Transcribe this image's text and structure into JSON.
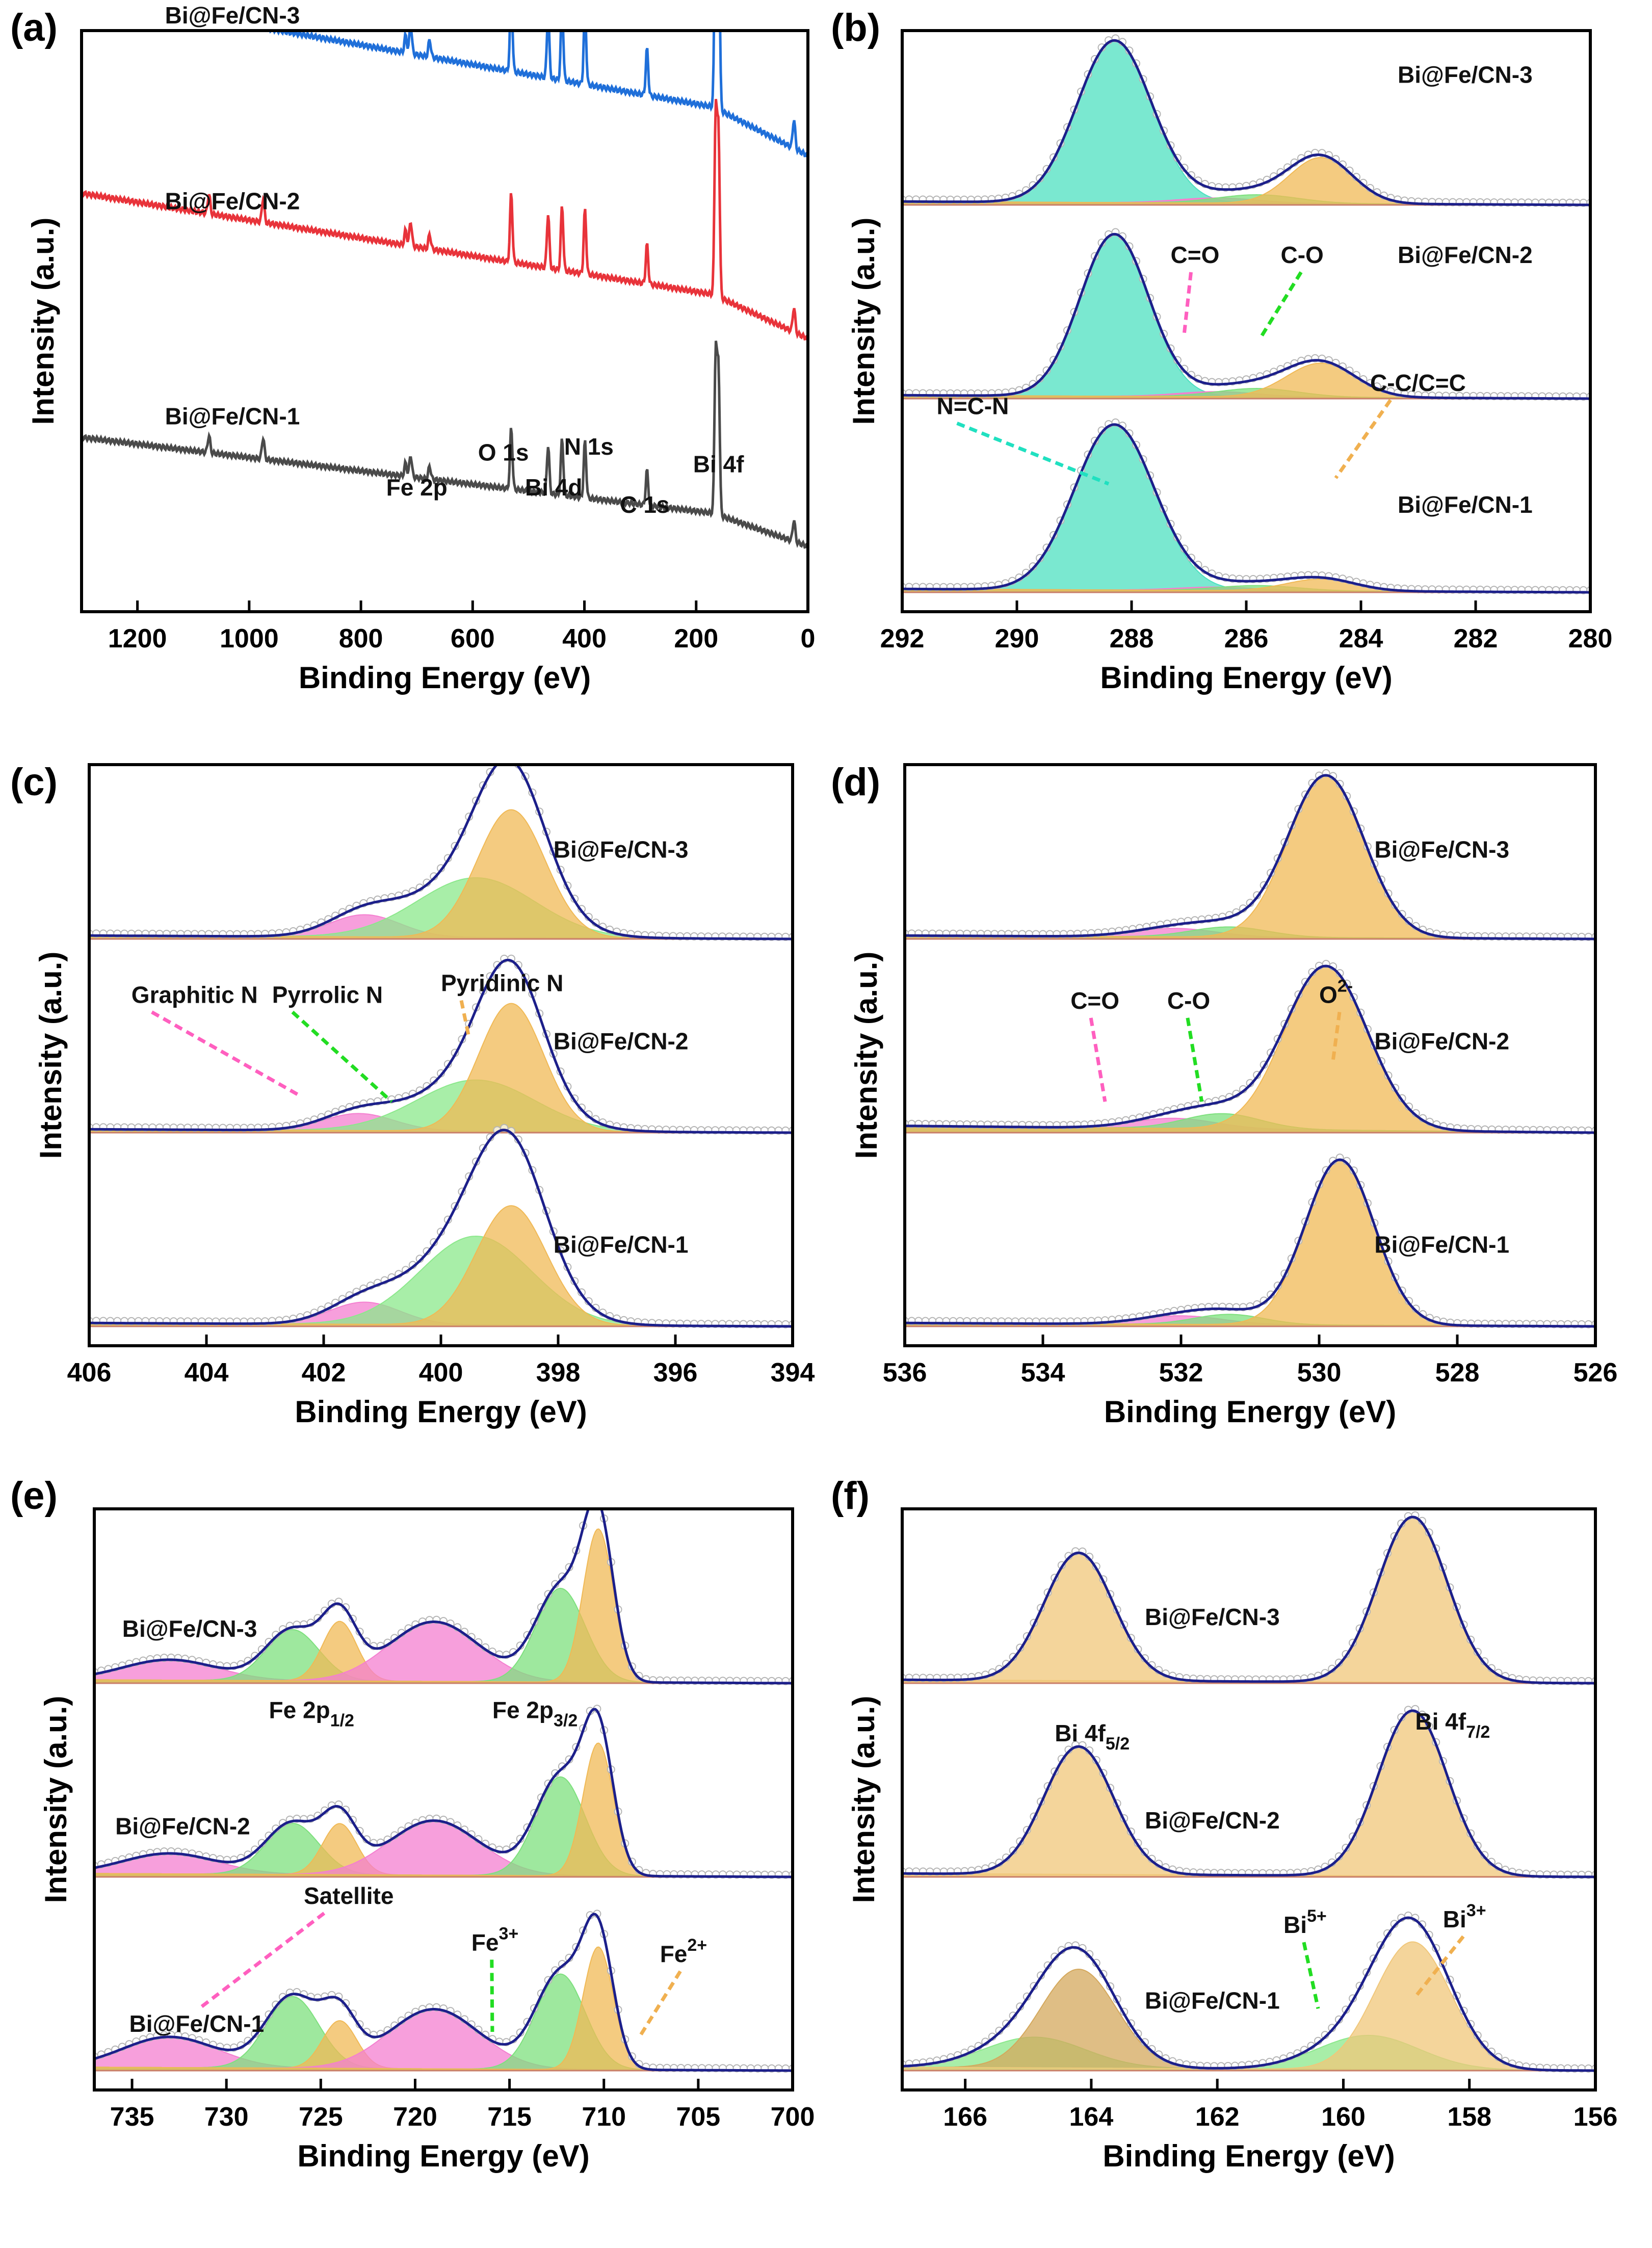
{
  "figure": {
    "panels": [
      {
        "id": "a",
        "label": "(a)",
        "type": "survey",
        "xlabel": "Binding Energy (eV)",
        "ylabel": "Intensity (a.u.)",
        "xlim": [
          1300,
          0
        ],
        "xticks": [
          1200,
          1000,
          800,
          600,
          400,
          200,
          0
        ],
        "xticklabels": [
          "1200",
          "1000",
          "800",
          "600",
          "400",
          "200",
          "0"
        ],
        "samples": [
          {
            "name": "Bi@Fe/CN-3",
            "color": "#1f6fd9",
            "base": 0.84,
            "slope": 0.22,
            "scale": 1.0
          },
          {
            "name": "Bi@Fe/CN-2",
            "color": "#e8333a",
            "base": 0.52,
            "slope": 0.2,
            "scale": 0.85
          },
          {
            "name": "Bi@Fe/CN-1",
            "color": "#4a4a4a",
            "base": 0.15,
            "slope": 0.15,
            "scale": 0.75
          }
        ],
        "peaks": [
          {
            "label": "Fe 2p",
            "be": 711
          },
          {
            "label": "O 1s",
            "be": 531
          },
          {
            "label": "Bi 4d",
            "be": 465
          },
          {
            "label": "N 1s",
            "be": 399
          },
          {
            "label": "C 1s",
            "be": 288
          },
          {
            "label": "Bi 4f",
            "be": 160
          }
        ]
      },
      {
        "id": "b",
        "label": "(b)",
        "type": "fit",
        "xlabel": "Binding Energy (eV)",
        "ylabel": "Intensity (a.u.)",
        "xlim": [
          292,
          280
        ],
        "xticks": [
          292,
          290,
          288,
          286,
          284,
          282,
          280
        ],
        "xticklabels": [
          "292",
          "290",
          "288",
          "286",
          "284",
          "282",
          "280"
        ],
        "samples": [
          {
            "name": "Bi@Fe/CN-3",
            "comps": [
              {
                "c": 288.3,
                "w": 0.65,
                "h": 0.95,
                "fill": "#4de0c0"
              },
              {
                "c": 286.5,
                "w": 0.7,
                "h": 0.03,
                "fill": "#ff77cc"
              },
              {
                "c": 285.8,
                "w": 0.7,
                "h": 0.05,
                "fill": "#7de07d"
              },
              {
                "c": 284.7,
                "w": 0.55,
                "h": 0.27,
                "fill": "#f0b955"
              }
            ]
          },
          {
            "name": "Bi@Fe/CN-2",
            "comps": [
              {
                "c": 288.3,
                "w": 0.6,
                "h": 0.95,
                "fill": "#4de0c0"
              },
              {
                "c": 286.5,
                "w": 0.7,
                "h": 0.03,
                "fill": "#ff77cc"
              },
              {
                "c": 285.8,
                "w": 0.7,
                "h": 0.05,
                "fill": "#7de07d"
              },
              {
                "c": 284.7,
                "w": 0.6,
                "h": 0.2,
                "fill": "#f0b955"
              }
            ]
          },
          {
            "name": "Bi@Fe/CN-1",
            "comps": [
              {
                "c": 288.3,
                "w": 0.7,
                "h": 0.97,
                "fill": "#4de0c0"
              },
              {
                "c": 286.5,
                "w": 0.7,
                "h": 0.02,
                "fill": "#ff77cc"
              },
              {
                "c": 285.8,
                "w": 0.7,
                "h": 0.03,
                "fill": "#7de07d"
              },
              {
                "c": 284.7,
                "w": 0.6,
                "h": 0.07,
                "fill": "#f0b955"
              }
            ]
          }
        ],
        "annotations": [
          {
            "text": "N=C-N",
            "be": 288.3,
            "color": "#20e0c0"
          },
          {
            "text": "C=O",
            "be": 286.6,
            "color": "#ff5fbf"
          },
          {
            "text": "C-O",
            "be": 285.7,
            "color": "#22dd22"
          },
          {
            "text": "C-C/C=C",
            "be": 284.5,
            "color": "#f0b050"
          }
        ]
      },
      {
        "id": "c",
        "label": "(c)",
        "type": "fit",
        "xlabel": "Binding Energy (eV)",
        "ylabel": "Intensity (a.u.)",
        "xlim": [
          406,
          394
        ],
        "xticks": [
          406,
          404,
          402,
          400,
          398,
          396,
          394
        ],
        "xticklabels": [
          "406",
          "404",
          "402",
          "400",
          "398",
          "396",
          "394"
        ],
        "samples": [
          {
            "name": "Bi@Fe/CN-3",
            "comps": [
              {
                "c": 401.3,
                "w": 0.6,
                "h": 0.13,
                "fill": "#f47fd0"
              },
              {
                "c": 399.4,
                "w": 1.0,
                "h": 0.35,
                "fill": "#8be88b"
              },
              {
                "c": 398.8,
                "w": 0.58,
                "h": 0.75,
                "fill": "#f0b955"
              }
            ]
          },
          {
            "name": "Bi@Fe/CN-2",
            "comps": [
              {
                "c": 401.4,
                "w": 0.6,
                "h": 0.1,
                "fill": "#f47fd0"
              },
              {
                "c": 399.4,
                "w": 1.0,
                "h": 0.3,
                "fill": "#8be88b"
              },
              {
                "c": 398.8,
                "w": 0.55,
                "h": 0.75,
                "fill": "#f0b955"
              }
            ]
          },
          {
            "name": "Bi@Fe/CN-1",
            "comps": [
              {
                "c": 401.3,
                "w": 0.6,
                "h": 0.13,
                "fill": "#f47fd0"
              },
              {
                "c": 399.4,
                "w": 0.95,
                "h": 0.52,
                "fill": "#8be88b"
              },
              {
                "c": 398.8,
                "w": 0.6,
                "h": 0.7,
                "fill": "#f0b955"
              }
            ]
          }
        ],
        "annotations": [
          {
            "text": "Graphitic N",
            "be": 401.8,
            "color": "#ff5fbf"
          },
          {
            "text": "Pyrrolic N",
            "be": 400.0,
            "color": "#22dd22"
          },
          {
            "text": "Pyridinic N",
            "be": 398.6,
            "color": "#f0b050"
          }
        ]
      },
      {
        "id": "d",
        "label": "(d)",
        "type": "fit",
        "xlabel": "Binding Energy (eV)",
        "ylabel": "Intensity (a.u.)",
        "xlim": [
          536,
          526
        ],
        "xticks": [
          536,
          534,
          532,
          530,
          528,
          526
        ],
        "xticklabels": [
          "536",
          "534",
          "532",
          "530",
          "528",
          "526"
        ],
        "samples": [
          {
            "name": "Bi@Fe/CN-3",
            "comps": [
              {
                "c": 532.1,
                "w": 0.6,
                "h": 0.05,
                "fill": "#f47fd0"
              },
              {
                "c": 531.3,
                "w": 0.55,
                "h": 0.06,
                "fill": "#7de07d"
              },
              {
                "c": 529.9,
                "w": 0.55,
                "h": 0.95,
                "fill": "#f0b955"
              }
            ]
          },
          {
            "name": "Bi@Fe/CN-2",
            "comps": [
              {
                "c": 532.1,
                "w": 0.6,
                "h": 0.06,
                "fill": "#f47fd0"
              },
              {
                "c": 531.4,
                "w": 0.55,
                "h": 0.09,
                "fill": "#7de07d"
              },
              {
                "c": 529.9,
                "w": 0.6,
                "h": 0.96,
                "fill": "#f0b955"
              }
            ]
          },
          {
            "name": "Bi@Fe/CN-1",
            "comps": [
              {
                "c": 532.0,
                "w": 0.6,
                "h": 0.05,
                "fill": "#f47fd0"
              },
              {
                "c": 531.3,
                "w": 0.5,
                "h": 0.06,
                "fill": "#7de07d"
              },
              {
                "c": 529.7,
                "w": 0.5,
                "h": 0.97,
                "fill": "#f0b955"
              }
            ]
          }
        ],
        "annotations": [
          {
            "text": "C=O",
            "be": 532.4,
            "color": "#ff5fbf"
          },
          {
            "text": "C-O",
            "be": 531.5,
            "color": "#22dd22"
          },
          {
            "text": "O",
            "sup": "2-",
            "be": 529.3,
            "color": "#f0b050"
          }
        ]
      },
      {
        "id": "e",
        "label": "(e)",
        "type": "fit",
        "xlabel": "Binding Energy (eV)",
        "ylabel": "Intensity (a.u.)",
        "xlim": [
          737,
          700
        ],
        "xticks": [
          735,
          730,
          725,
          720,
          715,
          710,
          705,
          700
        ],
        "xticklabels": [
          "735",
          "730",
          "725",
          "720",
          "715",
          "710",
          "705",
          "700"
        ],
        "samples": [
          {
            "name": "Bi@Fe/CN-3",
            "comps": [
              {
                "c": 733,
                "w": 2.5,
                "h": 0.12,
                "fill": "#f47fd0"
              },
              {
                "c": 726.5,
                "w": 1.4,
                "h": 0.3,
                "fill": "#7de07d"
              },
              {
                "c": 724,
                "w": 0.9,
                "h": 0.35,
                "fill": "#f0b955"
              },
              {
                "c": 719,
                "w": 2.4,
                "h": 0.35,
                "fill": "#f47fd0"
              },
              {
                "c": 712.3,
                "w": 1.3,
                "h": 0.55,
                "fill": "#7de07d"
              },
              {
                "c": 710.3,
                "w": 0.8,
                "h": 0.9,
                "fill": "#f0b955"
              }
            ]
          },
          {
            "name": "Bi@Fe/CN-2",
            "comps": [
              {
                "c": 733,
                "w": 2.5,
                "h": 0.12,
                "fill": "#f47fd0"
              },
              {
                "c": 726.5,
                "w": 1.4,
                "h": 0.3,
                "fill": "#7de07d"
              },
              {
                "c": 724,
                "w": 0.9,
                "h": 0.3,
                "fill": "#f0b955"
              },
              {
                "c": 719,
                "w": 2.4,
                "h": 0.32,
                "fill": "#f47fd0"
              },
              {
                "c": 712.3,
                "w": 1.3,
                "h": 0.58,
                "fill": "#7de07d"
              },
              {
                "c": 710.3,
                "w": 0.8,
                "h": 0.78,
                "fill": "#f0b955"
              }
            ]
          },
          {
            "name": "Bi@Fe/CN-1",
            "comps": [
              {
                "c": 733,
                "w": 2.5,
                "h": 0.18,
                "fill": "#f47fd0"
              },
              {
                "c": 726.5,
                "w": 1.4,
                "h": 0.42,
                "fill": "#7de07d"
              },
              {
                "c": 724,
                "w": 0.9,
                "h": 0.28,
                "fill": "#f0b955"
              },
              {
                "c": 719,
                "w": 2.4,
                "h": 0.35,
                "fill": "#f47fd0"
              },
              {
                "c": 712.3,
                "w": 1.3,
                "h": 0.56,
                "fill": "#7de07d"
              },
              {
                "c": 710.3,
                "w": 0.8,
                "h": 0.72,
                "fill": "#f0b955"
              }
            ]
          }
        ],
        "group_labels": [
          {
            "text": "Fe 2p",
            "sub": "1/2",
            "be": 725
          },
          {
            "text": "Fe 2p",
            "sub": "3/2",
            "be": 710.5
          }
        ],
        "annotations": [
          {
            "text": "Satellite",
            "be": 726,
            "color": "#ff5fbf"
          },
          {
            "text": "Fe",
            "sup": "3+",
            "be": 713.5,
            "color": "#22dd22"
          },
          {
            "text": "Fe",
            "sup": "2+",
            "be": 709,
            "color": "#f0b050"
          }
        ]
      },
      {
        "id": "f",
        "label": "(f)",
        "type": "fit",
        "xlabel": "Binding Energy (eV)",
        "ylabel": "Intensity (a.u.)",
        "xlim": [
          167,
          156
        ],
        "xticks": [
          166,
          164,
          162,
          160,
          158,
          156
        ],
        "xticklabels": [
          "166",
          "164",
          "162",
          "160",
          "158",
          "156"
        ],
        "samples": [
          {
            "name": "Bi@Fe/CN-3",
            "comps": [
              {
                "c": 164.2,
                "w": 0.55,
                "h": 0.75,
                "fill": "#f0c77a"
              },
              {
                "c": 158.9,
                "w": 0.55,
                "h": 0.97,
                "fill": "#f0c77a"
              }
            ]
          },
          {
            "name": "Bi@Fe/CN-2",
            "comps": [
              {
                "c": 164.2,
                "w": 0.55,
                "h": 0.75,
                "fill": "#f0c77a"
              },
              {
                "c": 158.9,
                "w": 0.55,
                "h": 0.97,
                "fill": "#f0c77a"
              }
            ]
          },
          {
            "name": "Bi@Fe/CN-1",
            "comps": [
              {
                "c": 164.9,
                "w": 0.8,
                "h": 0.18,
                "fill": "#8be88b"
              },
              {
                "c": 164.2,
                "w": 0.6,
                "h": 0.58,
                "fill": "#d4a85c"
              },
              {
                "c": 159.6,
                "w": 0.8,
                "h": 0.2,
                "fill": "#8be88b"
              },
              {
                "c": 158.9,
                "w": 0.6,
                "h": 0.75,
                "fill": "#f0c77a"
              }
            ]
          }
        ],
        "group_labels": [
          {
            "text": "Bi 4f",
            "sub": "5/2",
            "be": 164.2
          },
          {
            "text": "Bi 4f",
            "sub": "7/2",
            "be": 158.9
          }
        ],
        "annotations": [
          {
            "text": "Bi",
            "sup": "5+",
            "be": 160.1,
            "color": "#22dd22"
          },
          {
            "text": "Bi",
            "sup": "3+",
            "be": 158.3,
            "color": "#f0b050"
          }
        ]
      }
    ]
  }
}
